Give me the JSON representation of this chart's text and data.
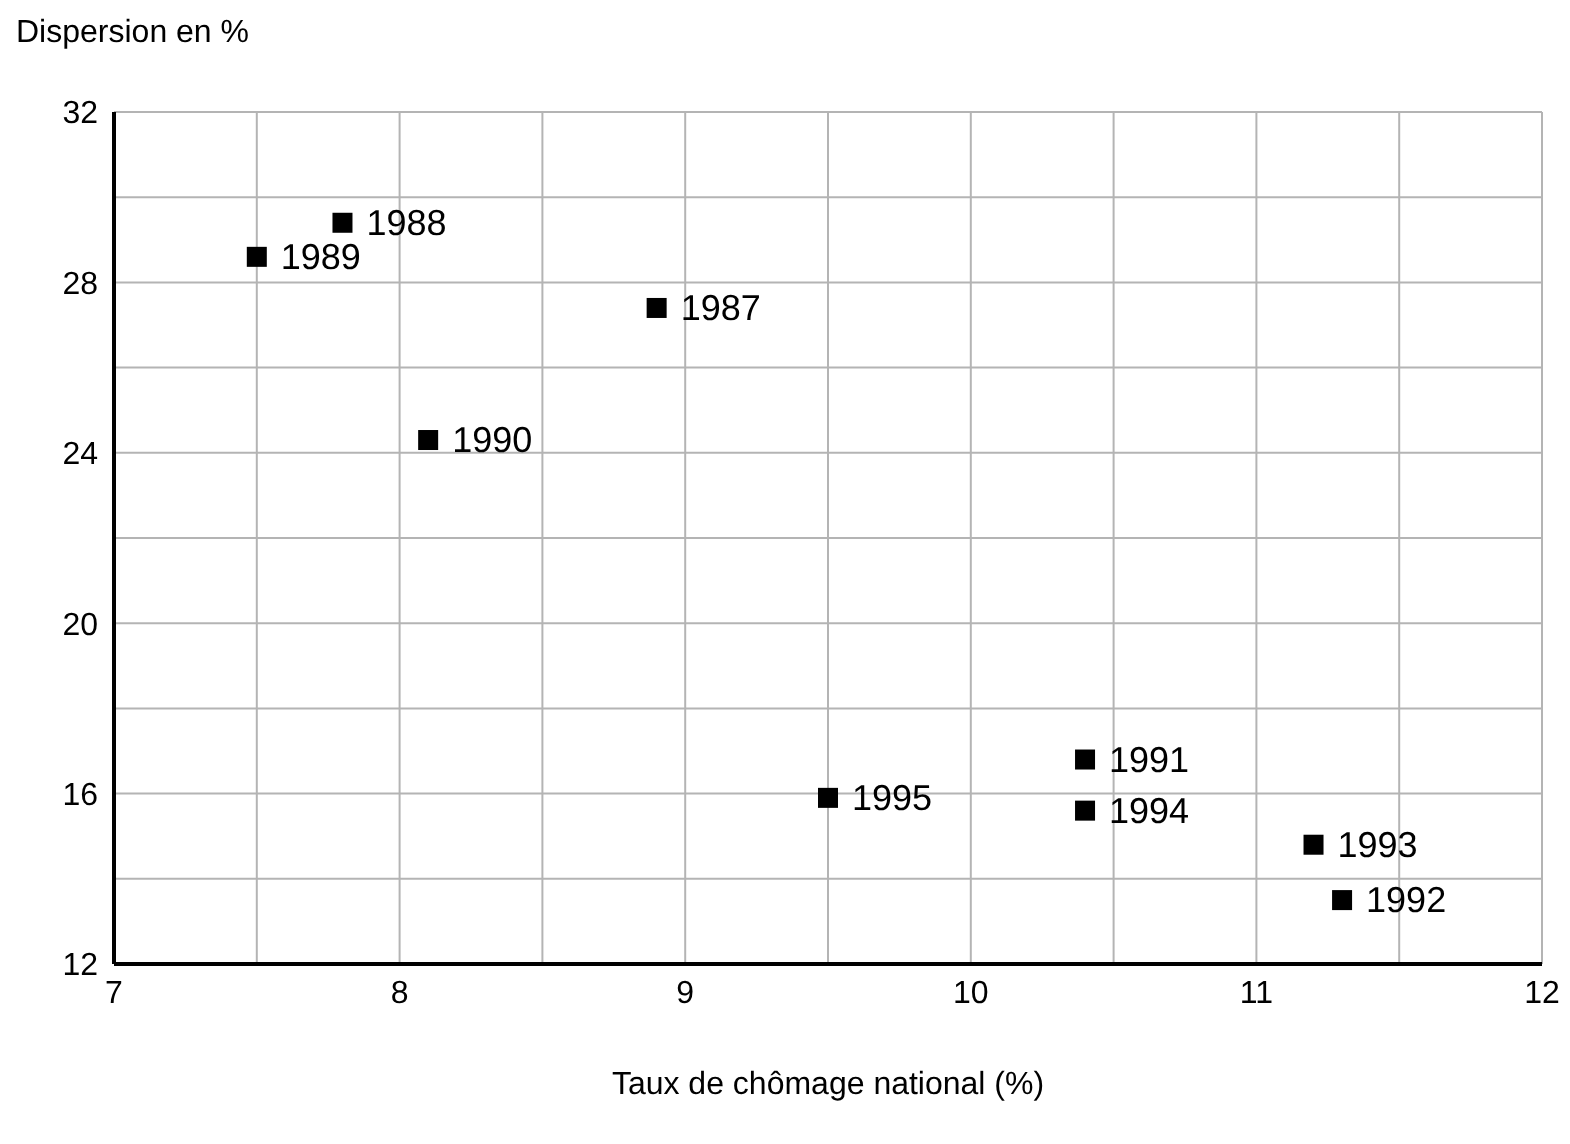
{
  "chart_data": {
    "type": "scatter",
    "xlabel": "Taux de chômage national (%)",
    "ylabel": "Dispersion en %",
    "x": [
      8.9,
      7.8,
      7.5,
      8.1,
      10.4,
      11.3,
      11.2,
      10.4,
      9.5
    ],
    "series": [
      {
        "color": "#000000",
        "values": [
          27.4,
          29.4,
          28.6,
          24.3,
          16.8,
          13.5,
          14.8,
          15.6,
          15.9
        ]
      }
    ],
    "marker": "square",
    "grid": true,
    "xlim": [
      7,
      12
    ],
    "xticks": [
      7,
      {
        "value": 7.5,
        "label": null
      },
      8,
      {
        "value": 8.5,
        "label": null
      },
      9,
      {
        "value": 9.5,
        "label": null
      },
      10,
      {
        "value": 10.5,
        "label": null
      },
      11,
      {
        "value": 11.5,
        "label": null
      },
      12
    ],
    "ylim": [
      12,
      32
    ],
    "yticks": [
      12,
      {
        "value": 14,
        "label": null
      },
      16,
      {
        "value": 18,
        "label": null
      },
      20,
      {
        "value": 22,
        "label": null
      },
      24,
      {
        "value": 26,
        "label": null
      },
      28,
      {
        "value": 30,
        "label": null
      },
      32
    ],
    "annotations": [
      {
        "text": "1987",
        "x": 8.9,
        "y": 27.4
      },
      {
        "text": "1988",
        "x": 7.8,
        "y": 29.4
      },
      {
        "text": "1989",
        "x": 7.5,
        "y": 28.6
      },
      {
        "text": "1990",
        "x": 8.1,
        "y": 24.3
      },
      {
        "text": "1991",
        "x": 10.4,
        "y": 16.8
      },
      {
        "text": "1992",
        "x": 11.3,
        "y": 13.5
      },
      {
        "text": "1993",
        "x": 11.2,
        "y": 14.8
      },
      {
        "text": "1994",
        "x": 10.4,
        "y": 15.6
      },
      {
        "text": "1995",
        "x": 9.5,
        "y": 15.9
      }
    ]
  }
}
